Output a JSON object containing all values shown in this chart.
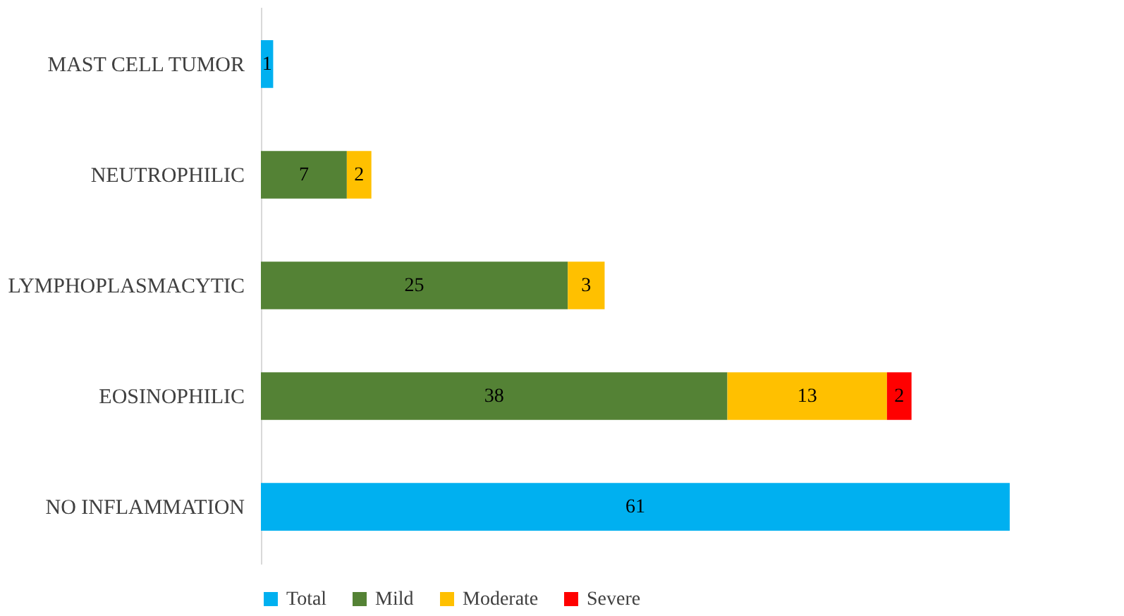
{
  "chart_data": {
    "type": "bar",
    "orientation": "horizontal",
    "stacked": true,
    "data_labels": true,
    "legend": "bottom",
    "categories": [
      "MAST CELL TUMOR",
      "NEUTROPHILIC",
      "LYMPHOPLASMACYTIC",
      "EOSINOPHILIC",
      "NO INFLAMMATION"
    ],
    "series": [
      {
        "name": "Total",
        "color": "#00b0f0",
        "values": [
          1,
          null,
          null,
          null,
          61
        ]
      },
      {
        "name": "Mild",
        "color": "#548235",
        "values": [
          null,
          7,
          25,
          38,
          null
        ]
      },
      {
        "name": "Moderate",
        "color": "#ffc000",
        "values": [
          null,
          2,
          3,
          13,
          null
        ]
      },
      {
        "name": "Severe",
        "color": "#ff0000",
        "values": [
          null,
          null,
          null,
          2,
          null
        ]
      }
    ]
  }
}
